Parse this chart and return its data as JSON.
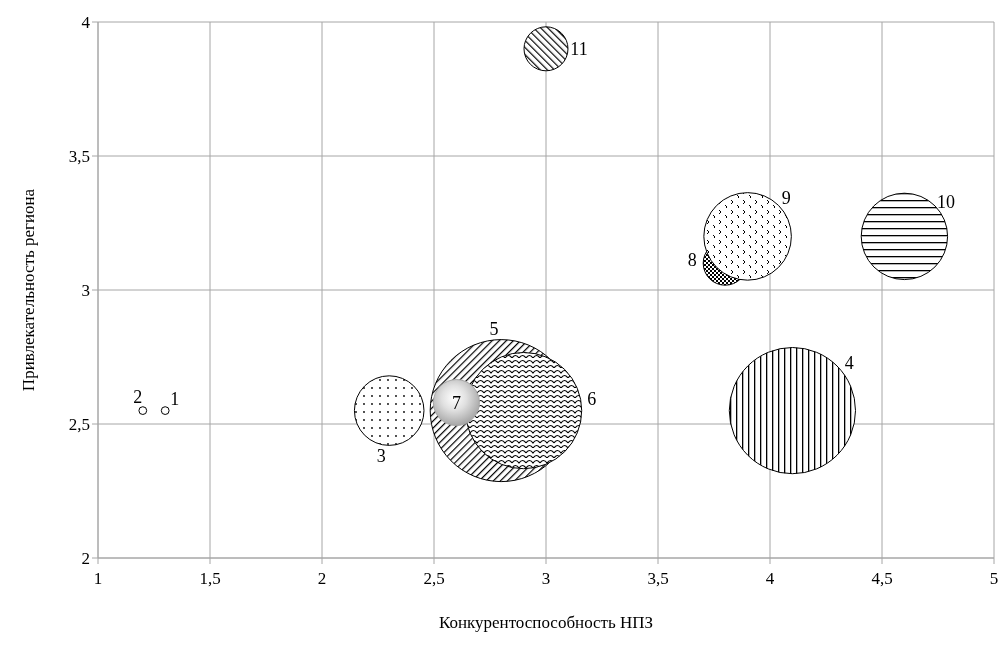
{
  "chart_data": {
    "type": "bubble",
    "xlabel": "Конкурентоспособность НПЗ",
    "ylabel": "Привлекательность региона",
    "x": [
      1.3,
      1.2,
      2.3,
      4.1,
      2.8,
      2.9,
      2.6,
      3.8,
      3.9,
      4.6,
      3.0
    ],
    "values": [
      2.55,
      2.55,
      2.55,
      2.55,
      2.55,
      2.55,
      2.58,
      3.1,
      3.2,
      3.2,
      3.9
    ],
    "sizes": [
      0.003,
      0.003,
      0.24,
      0.79,
      1,
      0.67,
      0.105,
      0.096,
      0.38,
      0.37,
      0.096
    ],
    "colors": [
      "#000000",
      "#000000",
      "#000000",
      "#000000",
      "#000000",
      "#000000",
      "#a6a6a6",
      "#000000",
      "#000000",
      "#000000",
      "#000000"
    ],
    "xlim": [
      1,
      5
    ],
    "xticks": [
      1,
      {
        "value": 1.5,
        "label": "1,5"
      },
      2,
      {
        "value": 2.5,
        "label": "2,5"
      },
      3,
      {
        "value": 3.5,
        "label": "3,5"
      },
      4,
      {
        "value": 4.5,
        "label": "4,5"
      },
      5
    ],
    "ylim": [
      2,
      4
    ],
    "yticks": [
      2,
      {
        "value": 2.5,
        "label": "2,5"
      },
      3,
      {
        "value": 3.5,
        "label": "3,5"
      },
      4
    ],
    "grid": true,
    "legend": false,
    "annotations": [
      "1",
      "2",
      "3",
      "4",
      "5",
      "6",
      "7",
      "8",
      "9",
      "10",
      "11"
    ]
  }
}
